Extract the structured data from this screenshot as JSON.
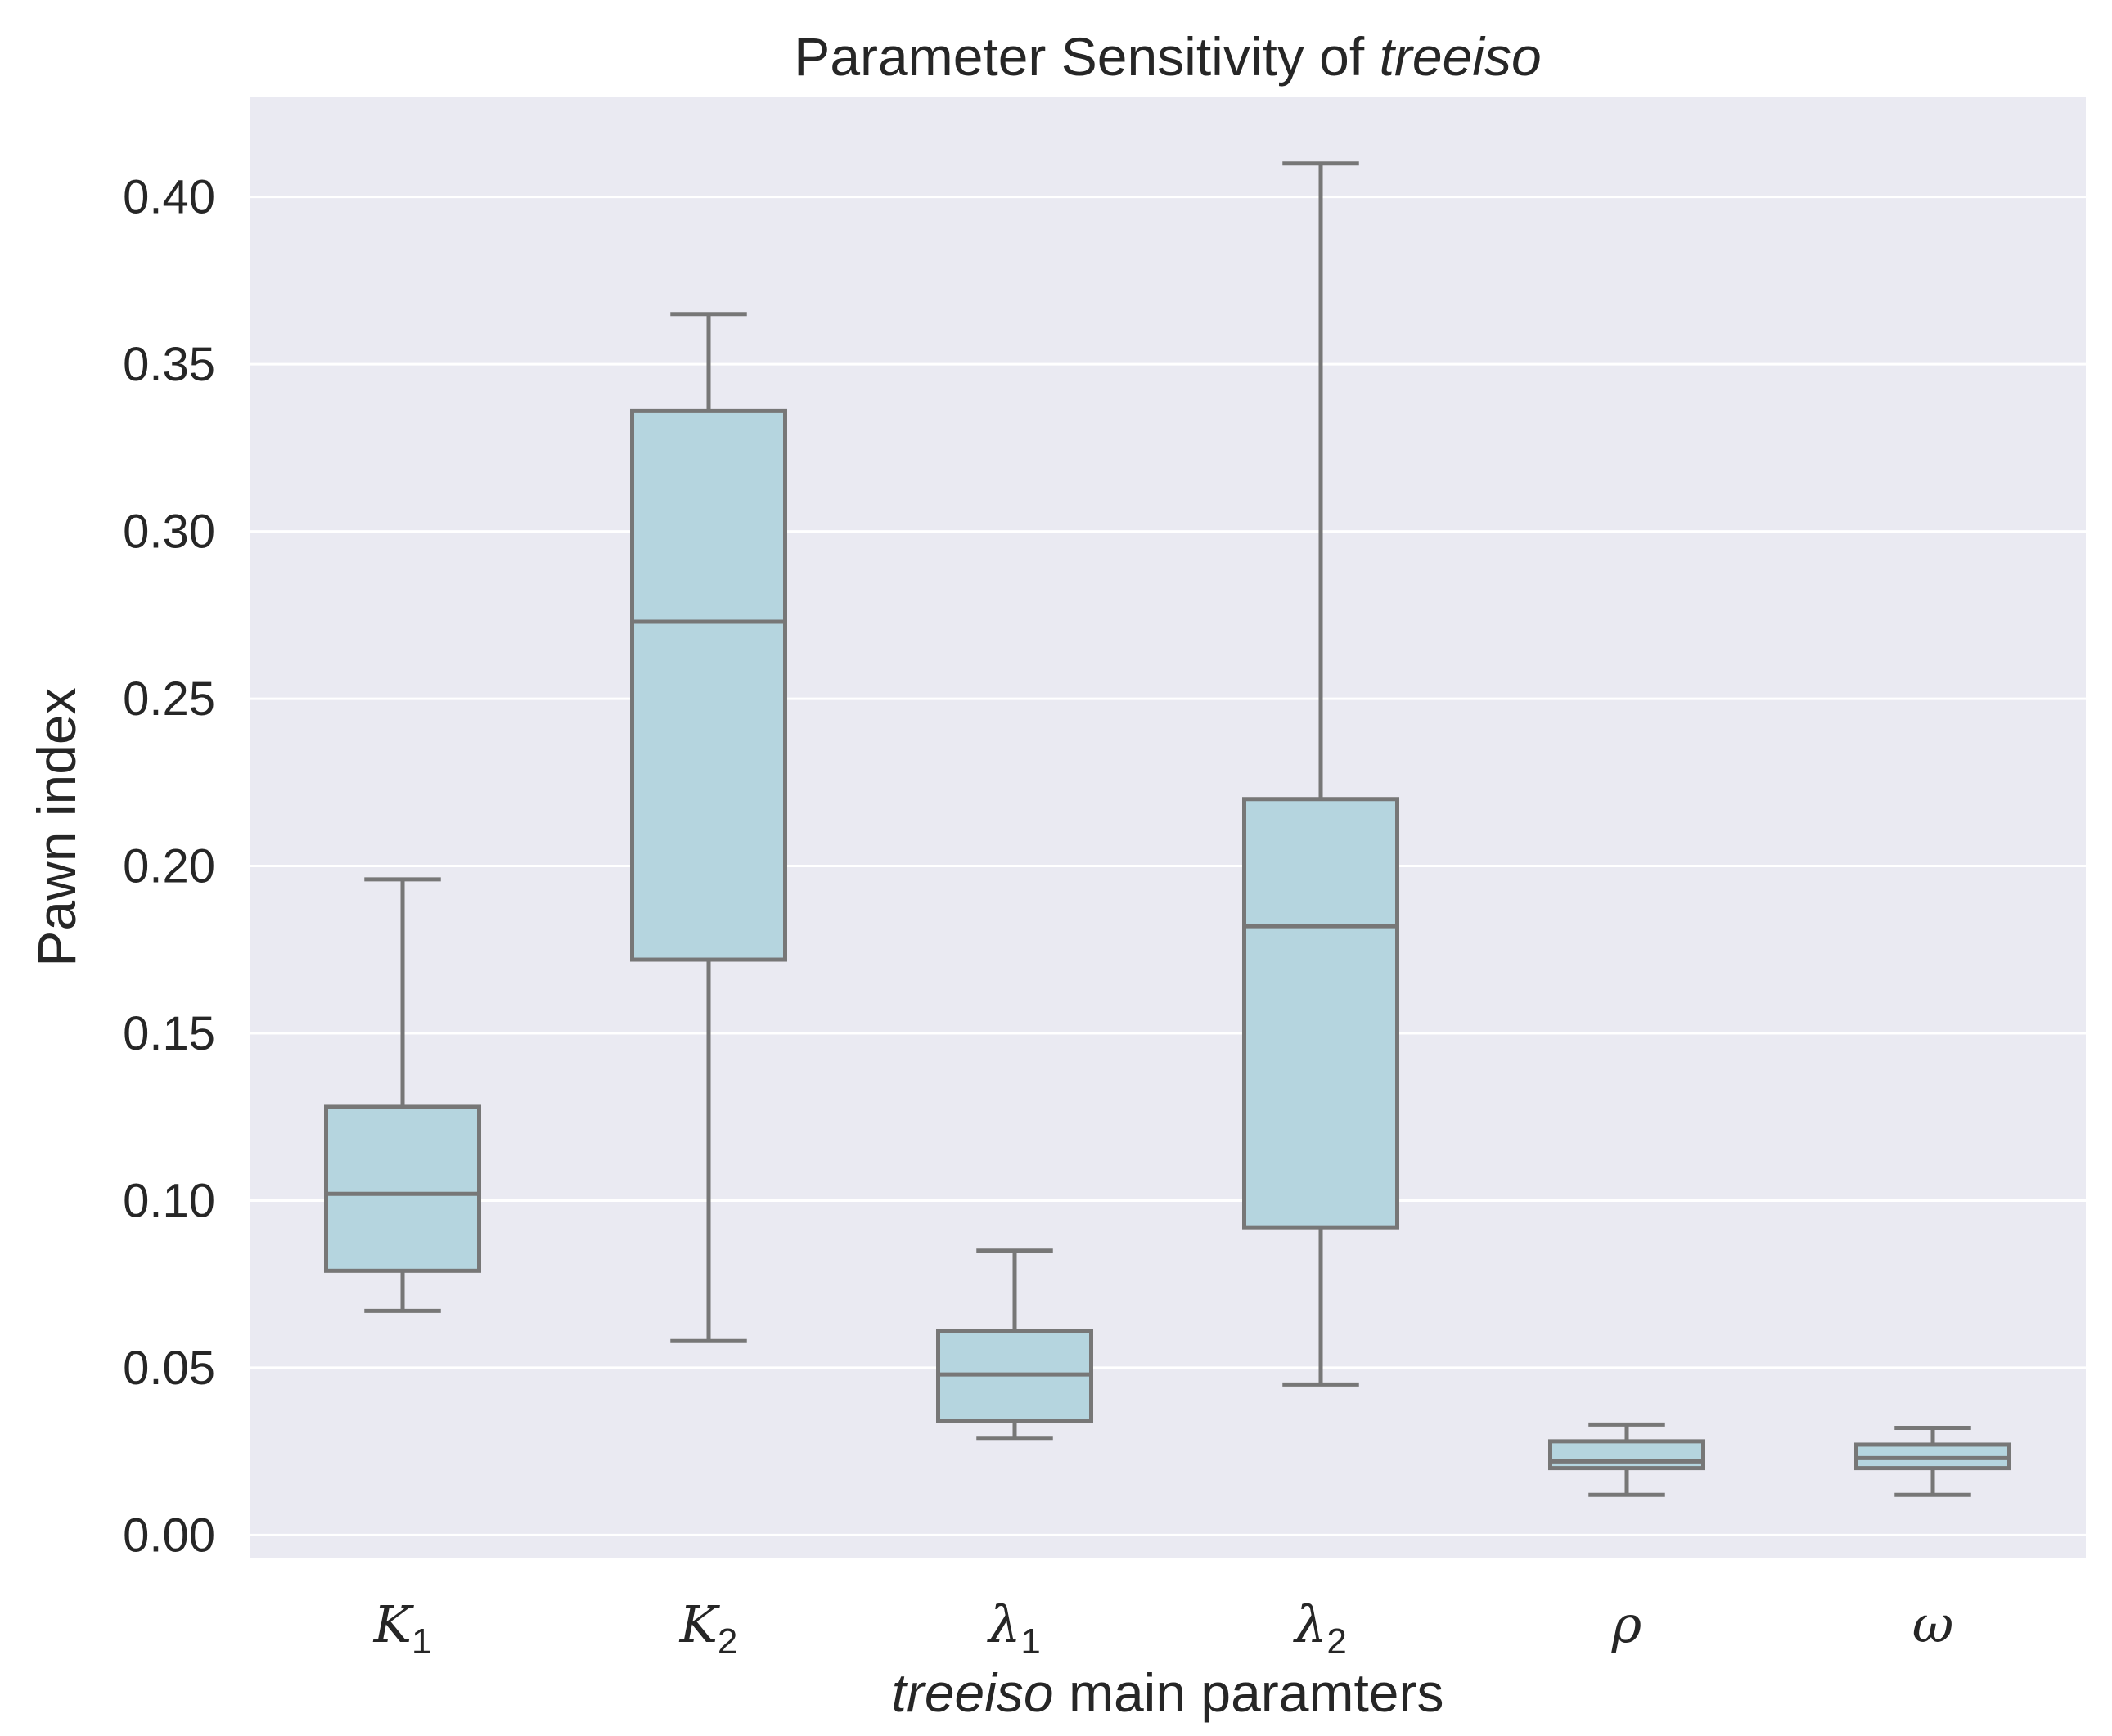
{
  "chart_data": {
    "type": "box",
    "title_prefix": "Parameter Sensitivity of ",
    "title_italic": "treeiso",
    "ylabel": "Pawn index",
    "xlabel_italic": "treeiso",
    "xlabel_rest": " main paramters",
    "ylim": [
      -0.007,
      0.43
    ],
    "yticks": [
      0.0,
      0.05,
      0.1,
      0.15,
      0.2,
      0.25,
      0.3,
      0.35,
      0.4
    ],
    "ytick_labels": [
      "0.00",
      "0.05",
      "0.10",
      "0.15",
      "0.20",
      "0.25",
      "0.30",
      "0.35",
      "0.40"
    ],
    "categories": [
      {
        "symbol": "K",
        "sub": "1"
      },
      {
        "symbol": "K",
        "sub": "2"
      },
      {
        "symbol": "λ",
        "sub": "1"
      },
      {
        "symbol": "λ",
        "sub": "2"
      },
      {
        "symbol": "ρ",
        "sub": ""
      },
      {
        "symbol": "ω",
        "sub": ""
      }
    ],
    "boxes": [
      {
        "whisker_low": 0.067,
        "q1": 0.079,
        "median": 0.102,
        "q3": 0.128,
        "whisker_high": 0.196
      },
      {
        "whisker_low": 0.058,
        "q1": 0.172,
        "median": 0.273,
        "q3": 0.336,
        "whisker_high": 0.365
      },
      {
        "whisker_low": 0.029,
        "q1": 0.034,
        "median": 0.048,
        "q3": 0.061,
        "whisker_high": 0.085
      },
      {
        "whisker_low": 0.045,
        "q1": 0.092,
        "median": 0.182,
        "q3": 0.22,
        "whisker_high": 0.41
      },
      {
        "whisker_low": 0.012,
        "q1": 0.02,
        "median": 0.022,
        "q3": 0.028,
        "whisker_high": 0.033
      },
      {
        "whisker_low": 0.012,
        "q1": 0.02,
        "median": 0.023,
        "q3": 0.027,
        "whisker_high": 0.032
      }
    ],
    "colors": {
      "box_fill": "#b5d5df",
      "box_edge": "#777777",
      "plot_bg": "#eaeaf2",
      "grid": "#ffffff"
    }
  }
}
